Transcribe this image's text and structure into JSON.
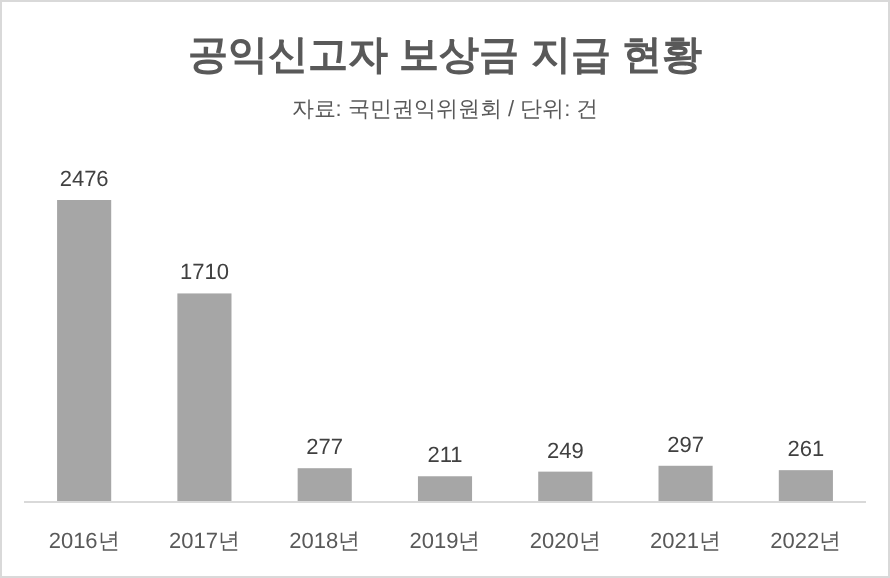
{
  "chart_data": {
    "type": "bar",
    "title": "공익신고자 보상금 지급 현황",
    "subtitle": "자료: 국민권익위원회 / 단위: 건",
    "categories": [
      "2016년",
      "2017년",
      "2018년",
      "2019년",
      "2020년",
      "2021년",
      "2022년"
    ],
    "values": [
      2476,
      1710,
      277,
      211,
      249,
      297,
      261
    ],
    "color": "#a6a6a6",
    "data_labels": true
  }
}
